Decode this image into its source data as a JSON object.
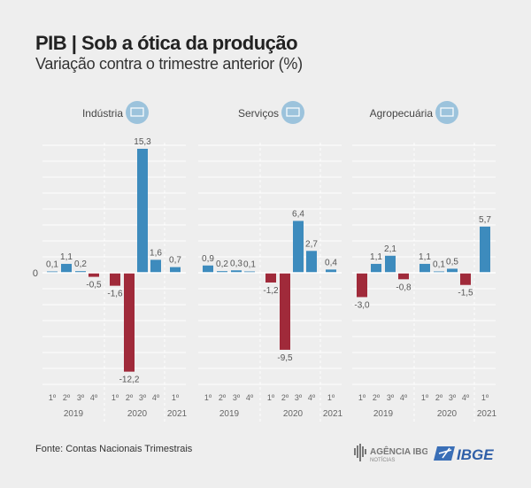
{
  "title": "PIB | Sob a ótica da produção",
  "subtitle": "Variação contra o trimestre anterior (%)",
  "source": "Fonte: Contas Nacionais Trimestrais",
  "logos": {
    "agencia": "AGÊNCIA IBGE NOTÍCIAS",
    "ibge": "IBGE"
  },
  "colors": {
    "positive": "#3d8bbd",
    "negative": "#a02a3a",
    "icon_circle": "#9cc3dc"
  },
  "chart_data": [
    {
      "type": "bar",
      "title": "Indústria",
      "icon": "factory-icon",
      "categories": [
        "1º",
        "2º",
        "3º",
        "4º",
        "1º",
        "2º",
        "3º",
        "4º",
        "1º"
      ],
      "years": [
        {
          "label": "2019",
          "quarters": 4
        },
        {
          "label": "2020",
          "quarters": 4
        },
        {
          "label": "2021",
          "quarters": 1
        }
      ],
      "values": [
        0.1,
        1.1,
        0.2,
        -0.5,
        -1.6,
        -12.2,
        15.3,
        1.6,
        0.7
      ],
      "labels": [
        "0,1",
        "1,1",
        "0,2",
        "-0,5",
        "-1,6",
        "-12,2",
        "15,3",
        "1,6",
        "0,7"
      ],
      "ytick": "0",
      "grid": true
    },
    {
      "type": "bar",
      "title": "Serviços",
      "icon": "person-icon",
      "categories": [
        "1º",
        "2º",
        "3º",
        "4º",
        "1º",
        "2º",
        "3º",
        "4º",
        "1º"
      ],
      "years": [
        {
          "label": "2019",
          "quarters": 4
        },
        {
          "label": "2020",
          "quarters": 4
        },
        {
          "label": "2021",
          "quarters": 1
        }
      ],
      "values": [
        0.9,
        0.2,
        0.3,
        0.1,
        -1.2,
        -9.5,
        6.4,
        2.7,
        0.4
      ],
      "labels": [
        "0,9",
        "0,2",
        "0,3",
        "0,1",
        "-1,2",
        "-9,5",
        "6,4",
        "2,7",
        "0,4"
      ],
      "grid": true
    },
    {
      "type": "bar",
      "title": "Agropecuária",
      "icon": "plant-icon",
      "categories": [
        "1º",
        "2º",
        "3º",
        "4º",
        "1º",
        "2º",
        "3º",
        "4º",
        "1º"
      ],
      "years": [
        {
          "label": "2019",
          "quarters": 4
        },
        {
          "label": "2020",
          "quarters": 4
        },
        {
          "label": "2021",
          "quarters": 1
        }
      ],
      "values": [
        -3.0,
        1.1,
        2.1,
        -0.8,
        1.1,
        0.1,
        0.5,
        -1.5,
        5.7
      ],
      "labels": [
        "-3,0",
        "1,1",
        "2,1",
        "-0,8",
        "1,1",
        "0,1",
        "0,5",
        "-1,5",
        "5,7"
      ],
      "grid": true
    }
  ]
}
